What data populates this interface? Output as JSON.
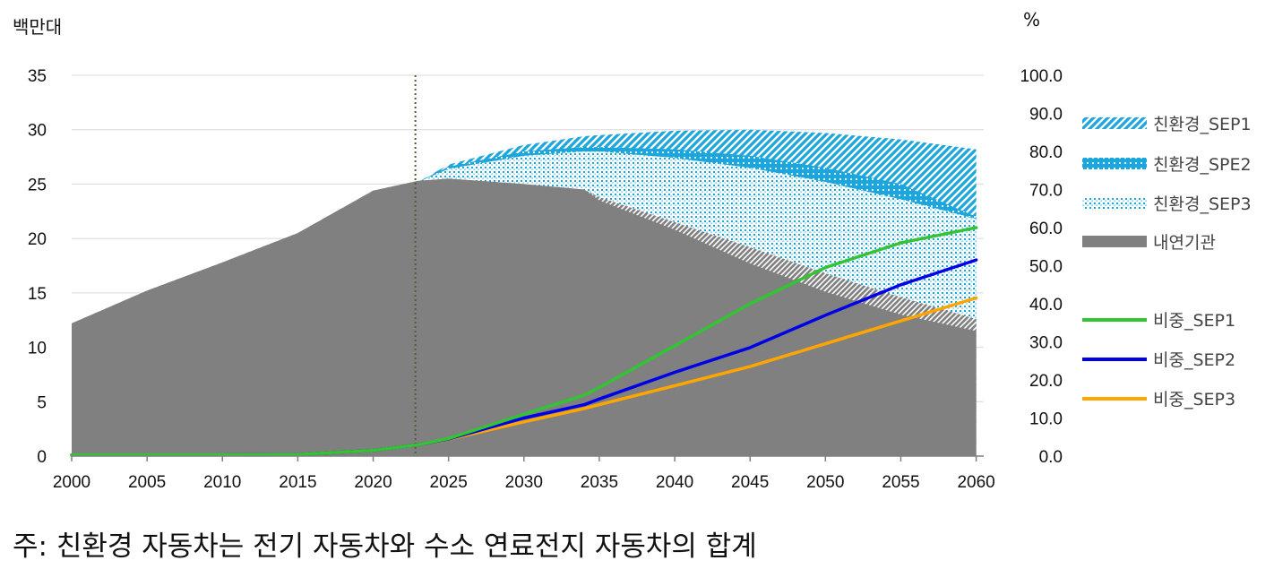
{
  "left_unit": "백만대",
  "right_unit": "%",
  "note": "주: 친환경 자동차는 전기 자동차와 수소 연료전지 자동차의 합계",
  "colors": {
    "sep1_fill": "#1aa7e0",
    "sep2_fill": "#1aa7e0",
    "sep3_fill": "#1aa7e0",
    "ice_fill": "#808080",
    "share_sep1": "#33c433",
    "share_sep2": "#0000e6",
    "share_sep3": "#ffa500",
    "marker_line": "#5a5a3c"
  },
  "chart_data": {
    "type": "area",
    "x": [
      2000,
      2005,
      2010,
      2015,
      2020,
      2023,
      2025,
      2030,
      2034,
      2035,
      2040,
      2045,
      2050,
      2055,
      2060
    ],
    "xticks": [
      "2000",
      "2005",
      "2010",
      "2015",
      "2020",
      "2025",
      "2030",
      "2035",
      "2040",
      "2045",
      "2050",
      "2055",
      "2060"
    ],
    "yticks_left": [
      "0",
      "5",
      "10",
      "15",
      "20",
      "25",
      "30",
      "35"
    ],
    "yticks_right": [
      "0.0",
      "10.0",
      "20.0",
      "30.0",
      "40.0",
      "50.0",
      "60.0",
      "70.0",
      "80.0",
      "90.0",
      "100.0"
    ],
    "ylim_left": [
      0,
      35
    ],
    "ylim_right": [
      0,
      100
    ],
    "xlim": [
      2000,
      2060.5
    ],
    "vline_x": 2022.8,
    "legend_position": "right",
    "series": [
      {
        "name": "친환경_SEP1",
        "kind": "area",
        "axis": "left",
        "pattern": "diag",
        "values": [
          12.2,
          15.2,
          17.8,
          20.5,
          24.2,
          25.2,
          26.8,
          28.6,
          29.4,
          29.5,
          29.9,
          30.0,
          29.7,
          29.1,
          28.2
        ]
      },
      {
        "name": "친환경_SPE2",
        "kind": "area",
        "axis": "left",
        "pattern": "grid",
        "values": [
          12.2,
          15.2,
          17.8,
          20.5,
          24.2,
          25.2,
          26.6,
          28.0,
          28.4,
          28.4,
          28.2,
          27.6,
          26.5,
          25.0,
          22.0
        ]
      },
      {
        "name": "친환경_SEP3",
        "kind": "area",
        "axis": "left",
        "pattern": "dots",
        "values": [
          12.2,
          15.2,
          17.8,
          20.5,
          24.2,
          25.2,
          26.4,
          27.6,
          28.0,
          28.0,
          27.4,
          26.5,
          25.2,
          23.6,
          21.8
        ]
      },
      {
        "name": "",
        "kind": "area",
        "axis": "left",
        "pattern": "stripe",
        "values": [
          12.2,
          15.2,
          17.8,
          20.5,
          24.4,
          25.3,
          25.5,
          25.0,
          24.5,
          23.8,
          21.5,
          19.2,
          16.8,
          14.6,
          12.6
        ]
      },
      {
        "name": "내연기관",
        "kind": "area",
        "axis": "left",
        "pattern": "solid",
        "values": [
          12.2,
          15.2,
          17.8,
          20.5,
          24.4,
          25.3,
          25.5,
          25.0,
          24.5,
          23.5,
          20.8,
          17.7,
          15.1,
          13.0,
          11.5
        ]
      },
      {
        "name": "비중_SEP1",
        "kind": "line",
        "axis": "right",
        "values": [
          0.3,
          0.3,
          0.3,
          0.4,
          1.5,
          3.0,
          4.6,
          11.0,
          16.0,
          18.0,
          29.0,
          40.0,
          49.5,
          56.0,
          60.0
        ]
      },
      {
        "name": "비중_SEP2",
        "kind": "line",
        "axis": "right",
        "values": [
          0.3,
          0.3,
          0.3,
          0.4,
          1.5,
          3.0,
          4.5,
          10.0,
          13.5,
          15.0,
          22.0,
          28.5,
          37.0,
          45.0,
          51.5
        ]
      },
      {
        "name": "비중_SEP3",
        "kind": "line",
        "axis": "right",
        "values": [
          0.3,
          0.3,
          0.3,
          0.4,
          1.5,
          3.0,
          4.4,
          9.0,
          12.5,
          13.5,
          18.5,
          23.5,
          29.5,
          35.5,
          41.5
        ]
      }
    ]
  }
}
